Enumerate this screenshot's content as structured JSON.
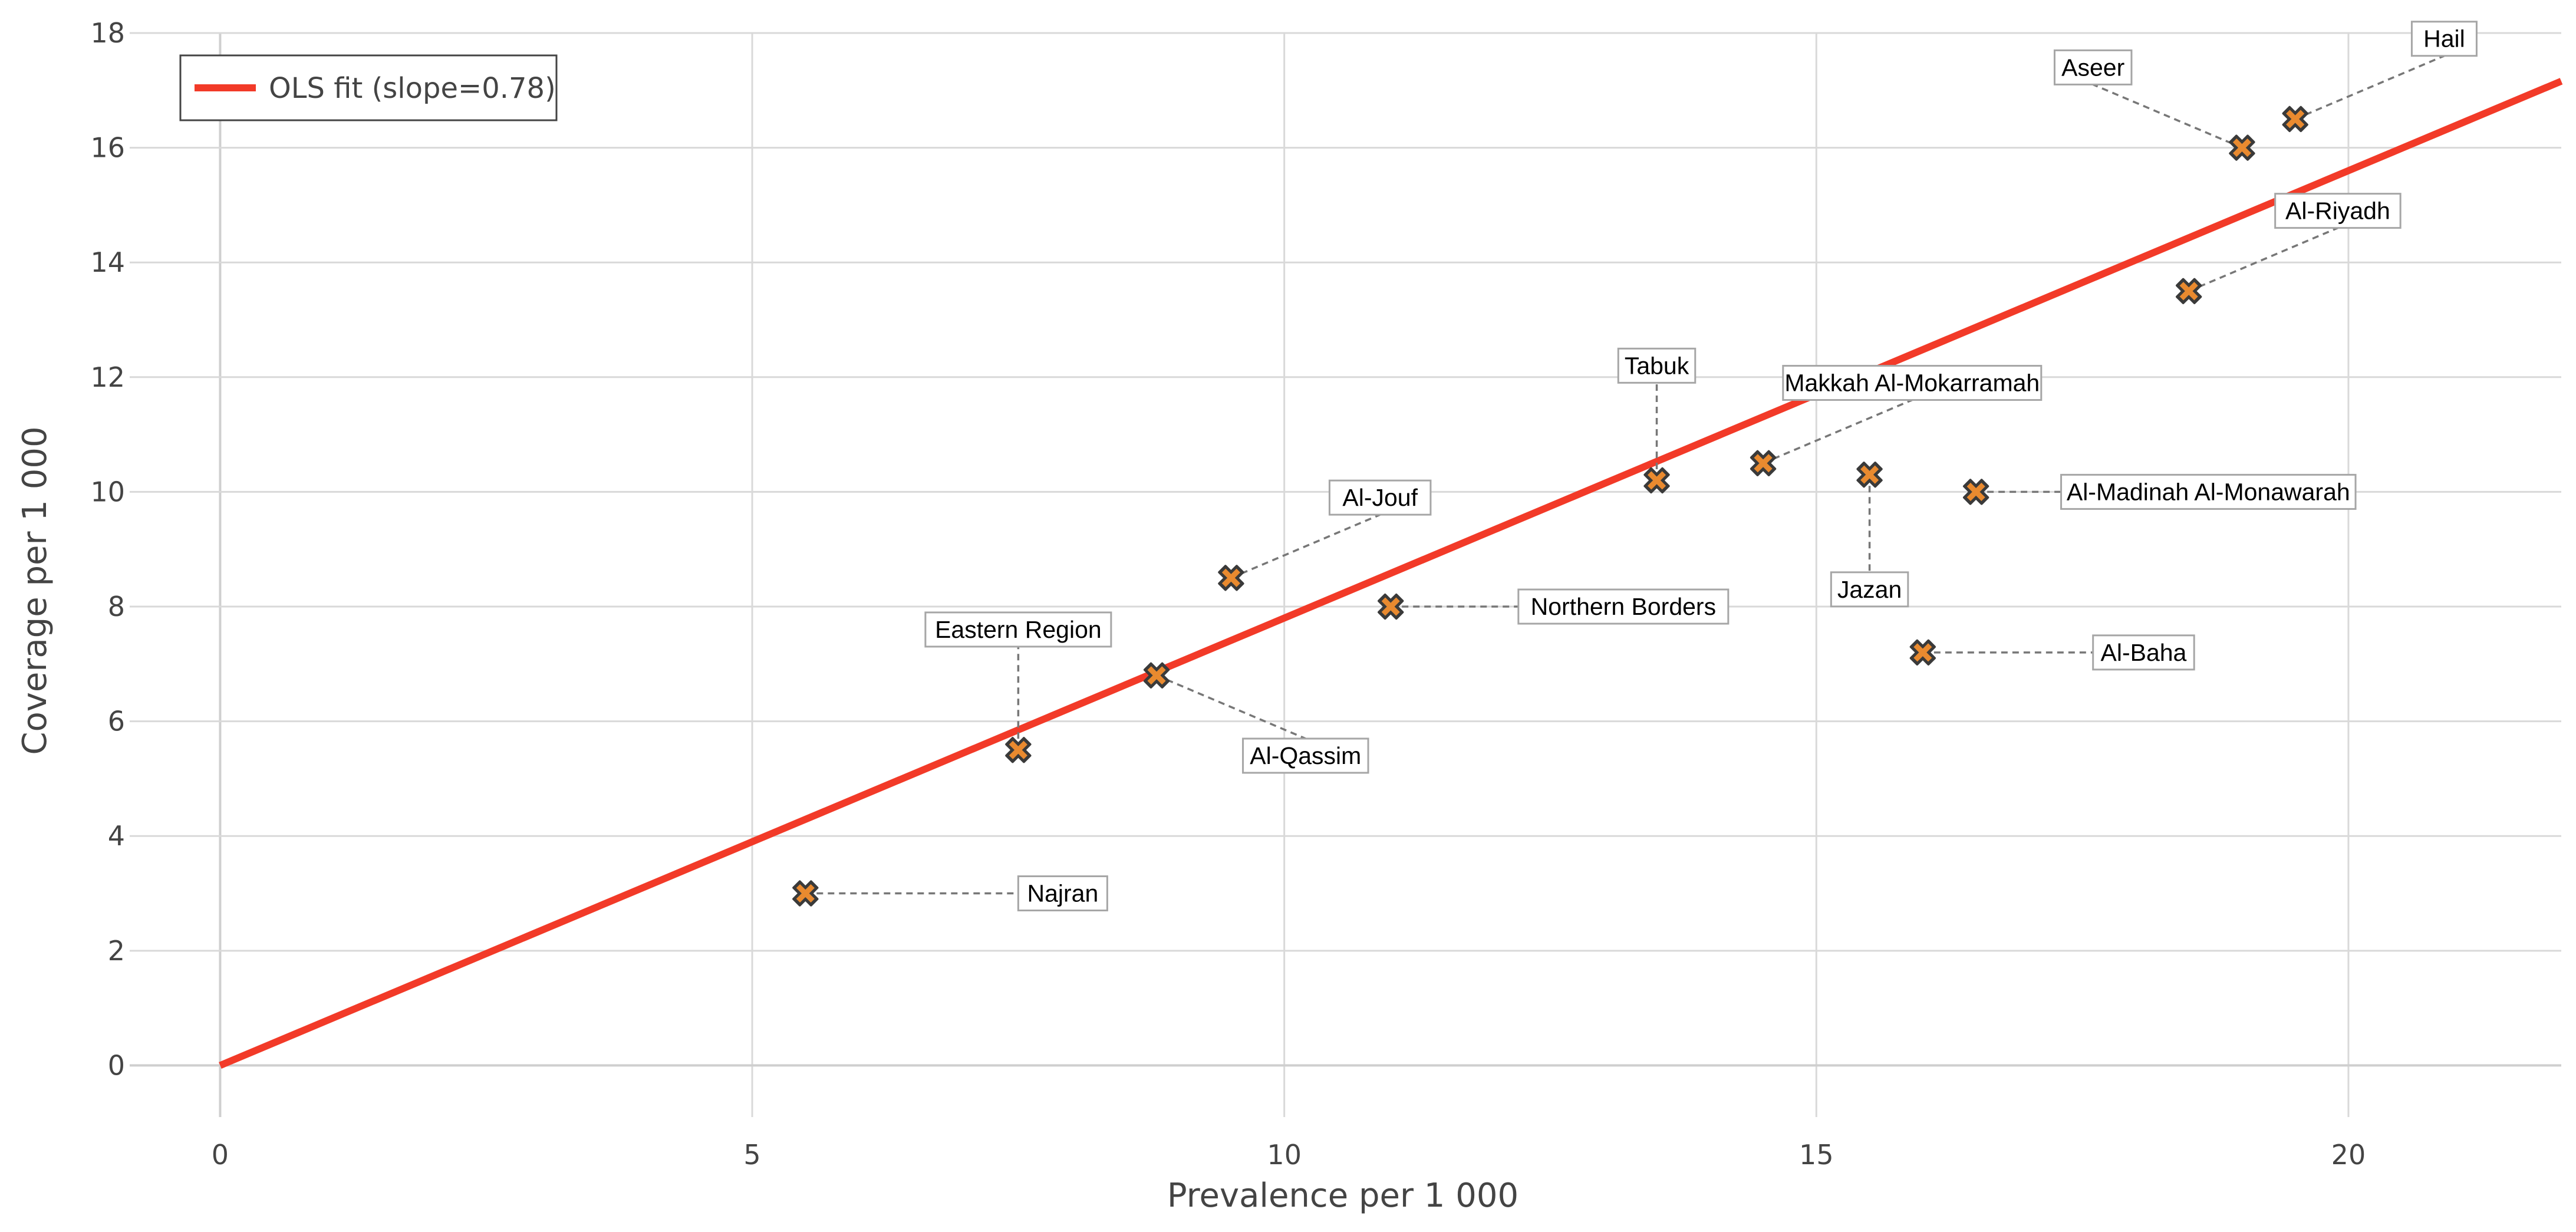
{
  "chart_data": {
    "type": "scatter",
    "title": "",
    "xlabel": "Prevalence per 1 000",
    "ylabel": "Coverage per 1 000",
    "xlim": [
      -0.85,
      22
    ],
    "ylim": [
      -0.9,
      18
    ],
    "x_ticks": [
      0,
      5,
      10,
      15,
      20
    ],
    "y_ticks": [
      0,
      2,
      4,
      6,
      8,
      10,
      12,
      14,
      16,
      18
    ],
    "grid": true,
    "legend": {
      "position": "top-left",
      "entries": [
        {
          "label": "OLS fit (slope=0.78)",
          "color": "#f23a28"
        }
      ]
    },
    "fit_line": {
      "name": "OLS fit (slope=0.78)",
      "slope": 0.78,
      "intercept": 0,
      "x_range": [
        0,
        22
      ],
      "color": "#f23a28"
    },
    "marker": {
      "symbol": "x",
      "fill_color": "#e98a2f",
      "edge_color": "#3a3a3a"
    },
    "points": [
      {
        "label": "Najran",
        "x": 5.5,
        "y": 3.0,
        "label_side": "right",
        "label_x": 7.5,
        "label_y": 3.0
      },
      {
        "label": "Eastern Region",
        "x": 7.5,
        "y": 5.5,
        "label_side": "above",
        "label_x": 7.5,
        "label_y": 7.6
      },
      {
        "label": "Al-Qassim",
        "x": 8.8,
        "y": 6.8,
        "label_side": "below",
        "label_x": 10.2,
        "label_y": 5.4
      },
      {
        "label": "Al-Jouf",
        "x": 9.5,
        "y": 8.5,
        "label_side": "above",
        "label_x": 10.9,
        "label_y": 9.9
      },
      {
        "label": "Northern Borders",
        "x": 11.0,
        "y": 8.0,
        "label_side": "right",
        "label_x": 12.2,
        "label_y": 8.0
      },
      {
        "label": "Tabuk",
        "x": 13.5,
        "y": 10.2,
        "label_side": "above",
        "label_x": 13.5,
        "label_y": 12.2
      },
      {
        "label": "Makkah Al-Mokarramah",
        "x": 14.5,
        "y": 10.5,
        "label_side": "above",
        "label_x": 15.9,
        "label_y": 11.9
      },
      {
        "label": "Jazan",
        "x": 15.5,
        "y": 10.3,
        "label_side": "below",
        "label_x": 15.5,
        "label_y": 8.3
      },
      {
        "label": "Al-Madinah Al-Monawarah",
        "x": 16.5,
        "y": 10.0,
        "label_side": "right",
        "label_x": 17.3,
        "label_y": 10.0
      },
      {
        "label": "Al-Baha",
        "x": 16.0,
        "y": 7.2,
        "label_side": "right",
        "label_x": 17.6,
        "label_y": 7.2
      },
      {
        "label": "Al-Riyadh",
        "x": 18.5,
        "y": 13.5,
        "label_side": "above",
        "label_x": 19.9,
        "label_y": 14.9
      },
      {
        "label": "Aseer",
        "x": 19.0,
        "y": 16.0,
        "label_side": "above",
        "label_x": 17.6,
        "label_y": 17.4
      },
      {
        "label": "Hail",
        "x": 19.5,
        "y": 16.5,
        "label_side": "above",
        "label_x": 20.9,
        "label_y": 17.9
      }
    ]
  }
}
